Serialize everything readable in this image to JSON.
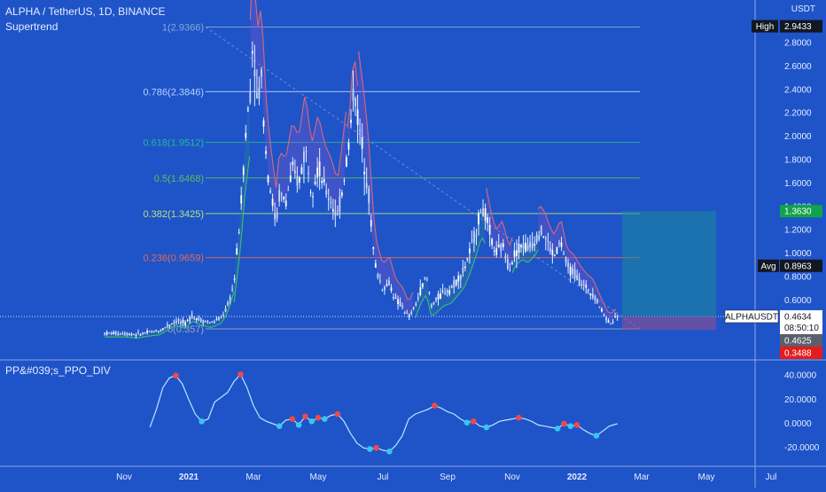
{
  "header": {
    "symbol_line": "ALPHA / TetherUS, 1D, BINANCE",
    "indicator_main": "Supertrend",
    "indicator_sub": "PP&#039;s_PPO_DIV",
    "currency": "USDT"
  },
  "chart_data": [
    {
      "type": "candlestick",
      "symbol": "ALPHAUSDT",
      "interval": "1D",
      "y_axis_ticks": [
        0.6,
        0.8,
        1.0,
        1.2,
        1.4,
        1.6,
        1.8,
        2.0,
        2.2,
        2.4,
        2.6,
        2.8
      ],
      "y_axis_tick_labels": [
        "0.6000",
        "0.8000",
        "1.0000",
        "1.2000",
        "1.4000",
        "1.6000",
        "1.8000",
        "2.0000",
        "2.2000",
        "2.4000",
        "2.6000",
        "2.8000"
      ],
      "x_axis_labels": [
        "Nov",
        "2021",
        "Mar",
        "May",
        "Jul",
        "Sep",
        "Nov",
        "2022",
        "Mar",
        "May",
        "Jul"
      ],
      "fib_levels": [
        {
          "ratio": 1,
          "price": 2.9366,
          "label": "1(2.9366)",
          "color": "#8ea6d6"
        },
        {
          "ratio": 0.786,
          "price": 2.3846,
          "label": "0.786(2.3846)",
          "color": "#bcd0ff"
        },
        {
          "ratio": 0.618,
          "price": 1.9512,
          "label": "0.618(1.9512)",
          "color": "#2bb59a"
        },
        {
          "ratio": 0.5,
          "price": 1.6468,
          "label": "0.5(1.6468)",
          "color": "#5fbf5a"
        },
        {
          "ratio": 0.382,
          "price": 1.3425,
          "label": "0.382(1.3425)",
          "color": "#b9e27a"
        },
        {
          "ratio": 0.236,
          "price": 0.9659,
          "label": "0.236(0.9659)",
          "color": "#e46a5a"
        },
        {
          "ratio": 0,
          "price": 0.357,
          "label": "0(0.357)",
          "color": "#9aa7c0"
        }
      ],
      "price_tags": [
        {
          "label": "High",
          "value": "2.9433",
          "price": 2.9433,
          "bg": "#131722",
          "fg": "#ffffff"
        },
        {
          "label": "",
          "value": "1.3630",
          "price": 1.363,
          "bg": "#11a34a",
          "fg": "#ffffff"
        },
        {
          "label": "Avg",
          "value": "0.8963",
          "price": 0.8963,
          "bg": "#131722",
          "fg": "#ffffff"
        },
        {
          "label": "ALPHAUSDT",
          "value": "0.4634",
          "sub": "08:50:10",
          "price": 0.4634,
          "bg": "#ffffff",
          "fg": "#131722"
        },
        {
          "label": "",
          "value": "0.4625",
          "price": 0.4625,
          "bg": "#5a5f6b",
          "fg": "#ffffff"
        },
        {
          "label": "",
          "value": "0.3488",
          "price": 0.3488,
          "bg": "#e31c1c",
          "fg": "#ffffff"
        }
      ],
      "close_path": [
        [
          0,
          0.32
        ],
        [
          0.4,
          0.31
        ],
        [
          0.8,
          0.33
        ],
        [
          1.1,
          0.34
        ],
        [
          1.3,
          0.38
        ],
        [
          1.6,
          0.43
        ],
        [
          1.9,
          0.4
        ],
        [
          2.1,
          0.47
        ],
        [
          2.4,
          0.43
        ],
        [
          2.7,
          0.41
        ],
        [
          3.0,
          0.45
        ],
        [
          3.2,
          0.55
        ],
        [
          3.4,
          0.75
        ],
        [
          3.5,
          1.05
        ],
        [
          3.6,
          1.35
        ],
        [
          3.75,
          2.0
        ],
        [
          3.9,
          2.4
        ],
        [
          4.0,
          2.9
        ],
        [
          4.1,
          2.3
        ],
        [
          4.25,
          2.5
        ],
        [
          4.4,
          1.8
        ],
        [
          4.55,
          1.5
        ],
        [
          4.7,
          1.25
        ],
        [
          4.8,
          1.5
        ],
        [
          5.0,
          1.45
        ],
        [
          5.2,
          1.7
        ],
        [
          5.4,
          1.6
        ],
        [
          5.6,
          1.9
        ],
        [
          5.8,
          1.55
        ],
        [
          6.0,
          1.75
        ],
        [
          6.2,
          1.55
        ],
        [
          6.4,
          1.45
        ],
        [
          6.6,
          1.3
        ],
        [
          6.8,
          1.65
        ],
        [
          7.0,
          2.05
        ],
        [
          7.1,
          2.45
        ],
        [
          7.25,
          2.1
        ],
        [
          7.4,
          1.85
        ],
        [
          7.55,
          1.55
        ],
        [
          7.7,
          1.05
        ],
        [
          7.8,
          0.85
        ],
        [
          8.0,
          0.7
        ],
        [
          8.2,
          0.75
        ],
        [
          8.4,
          0.6
        ],
        [
          8.6,
          0.55
        ],
        [
          8.8,
          0.45
        ],
        [
          9.0,
          0.55
        ],
        [
          9.2,
          0.72
        ],
        [
          9.35,
          0.8
        ],
        [
          9.5,
          0.56
        ],
        [
          9.7,
          0.62
        ],
        [
          9.9,
          0.68
        ],
        [
          10.1,
          0.7
        ],
        [
          10.3,
          0.78
        ],
        [
          10.5,
          0.86
        ],
        [
          10.7,
          1.02
        ],
        [
          10.9,
          1.22
        ],
        [
          11.05,
          1.4
        ],
        [
          11.2,
          1.3
        ],
        [
          11.35,
          1.12
        ],
        [
          11.5,
          1.0
        ],
        [
          11.7,
          1.07
        ],
        [
          11.9,
          0.88
        ],
        [
          12.1,
          1.02
        ],
        [
          12.3,
          1.08
        ],
        [
          12.5,
          1.05
        ],
        [
          12.7,
          1.12
        ],
        [
          12.85,
          1.2
        ],
        [
          13.0,
          1.15
        ],
        [
          13.15,
          1.05
        ],
        [
          13.3,
          0.98
        ],
        [
          13.5,
          1.1
        ],
        [
          13.7,
          0.88
        ],
        [
          13.9,
          0.84
        ],
        [
          14.1,
          0.76
        ],
        [
          14.3,
          0.7
        ],
        [
          14.5,
          0.66
        ],
        [
          14.7,
          0.55
        ],
        [
          14.9,
          0.45
        ],
        [
          15.0,
          0.41
        ],
        [
          15.15,
          0.43
        ],
        [
          15.25,
          0.4634
        ]
      ],
      "x_label_months": [
        0,
        2,
        4,
        6,
        8,
        10,
        12,
        14,
        16,
        18,
        20
      ]
    },
    {
      "type": "line",
      "name": "PPO",
      "y_axis_ticks": [
        40,
        20,
        0,
        -20
      ],
      "y_axis_tick_labels": [
        "40.0000",
        "20.0000",
        "0.0000",
        "-20.0000"
      ],
      "x": [
        0.8,
        1.0,
        1.2,
        1.4,
        1.6,
        1.8,
        2.0,
        2.2,
        2.4,
        2.6,
        2.8,
        3.0,
        3.2,
        3.4,
        3.6,
        3.8,
        4.0,
        4.2,
        4.4,
        4.6,
        4.8,
        5.0,
        5.2,
        5.4,
        5.6,
        5.8,
        6.0,
        6.2,
        6.4,
        6.6,
        6.8,
        7.0,
        7.2,
        7.4,
        7.6,
        7.8,
        8.0,
        8.2,
        8.4,
        8.6,
        8.8,
        9.0,
        9.2,
        9.4,
        9.6,
        9.8,
        10.0,
        10.2,
        10.4,
        10.6,
        10.8,
        11.0,
        11.2,
        11.4,
        11.6,
        11.8,
        12.0,
        12.2,
        12.4,
        12.6,
        12.8,
        13.0,
        13.2,
        13.4,
        13.6,
        13.8,
        14.0,
        14.2,
        14.4,
        14.6,
        14.8,
        15.0,
        15.25
      ],
      "values": [
        -3,
        12,
        30,
        38,
        40,
        33,
        20,
        8,
        2,
        4,
        18,
        22,
        26,
        35,
        41,
        30,
        15,
        5,
        2,
        0,
        -2,
        3,
        4,
        -1,
        6,
        2,
        5,
        4,
        7,
        8,
        2,
        -8,
        -16,
        -20,
        -21,
        -20,
        -22,
        -23,
        -18,
        -10,
        4,
        8,
        10,
        12,
        15,
        13,
        10,
        8,
        4,
        1,
        2,
        -2,
        -3,
        -1,
        2,
        3,
        4,
        5,
        4,
        2,
        -1,
        -2,
        -3,
        -4,
        0,
        -2,
        -1,
        -5,
        -8,
        -10,
        -6,
        -2,
        0
      ]
    }
  ]
}
